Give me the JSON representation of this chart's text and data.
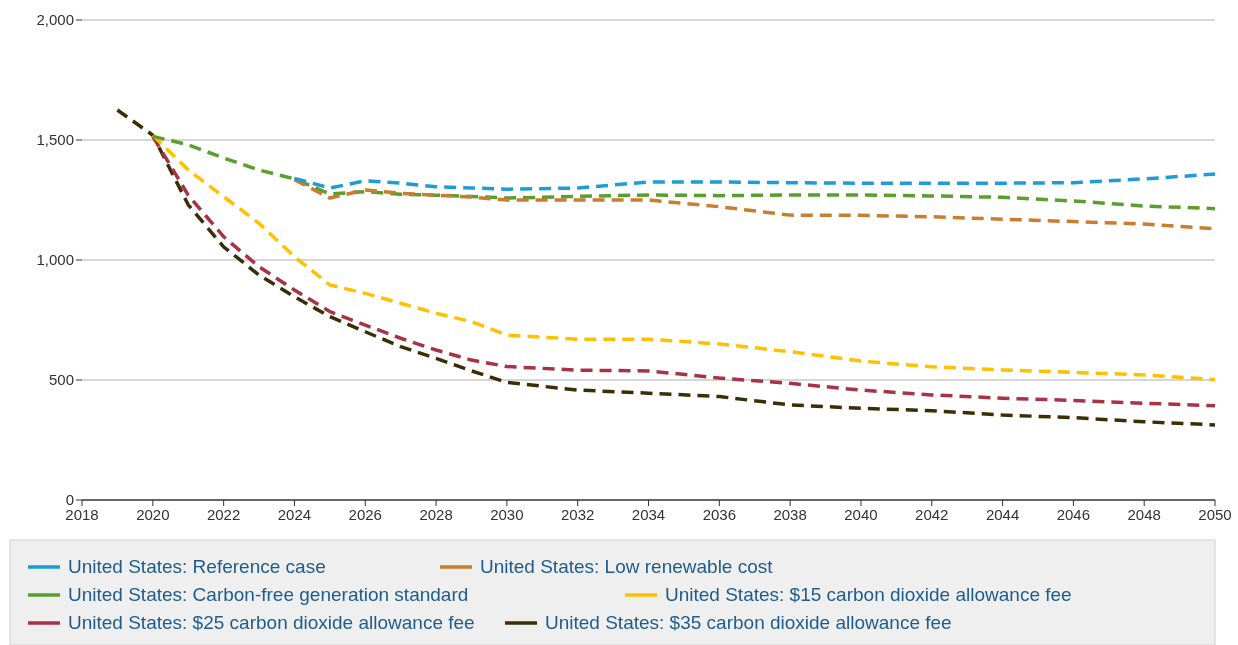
{
  "chart_data": {
    "type": "line",
    "x": [
      2019,
      2020,
      2021,
      2022,
      2023,
      2024,
      2025,
      2026,
      2027,
      2028,
      2029,
      2030,
      2032,
      2034,
      2036,
      2038,
      2040,
      2042,
      2044,
      2046,
      2048,
      2050
    ],
    "xlim": [
      2018,
      2050
    ],
    "xticks": [
      2018,
      2020,
      2022,
      2024,
      2026,
      2028,
      2030,
      2032,
      2034,
      2036,
      2038,
      2040,
      2042,
      2044,
      2046,
      2048,
      2050
    ],
    "ylim": [
      0,
      2000
    ],
    "yticks": [
      0,
      {
        "value": 500,
        "label": "500"
      },
      {
        "value": 1000,
        "label": "1,000"
      },
      {
        "value": 1500,
        "label": "1,500"
      },
      {
        "value": 2000,
        "label": "2,000"
      }
    ],
    "grid": "y",
    "legend": "bottom",
    "line_style": "dashed",
    "marker": "none",
    "series": [
      {
        "name": "United States: Reference case",
        "color": "#1f9bd7",
        "values": [
          null,
          null,
          null,
          null,
          null,
          1340,
          1300,
          1330,
          1320,
          1305,
          1300,
          1295,
          1300,
          1325,
          1325,
          1322,
          1320,
          1320,
          1320,
          1322,
          1338,
          1358
        ]
      },
      {
        "name": "United States: Low renewable cost",
        "color": "#c87d2f",
        "values": [
          null,
          null,
          null,
          null,
          null,
          1335,
          1258,
          1292,
          1278,
          1270,
          1262,
          1250,
          1250,
          1250,
          1222,
          1187,
          1186,
          1180,
          1170,
          1160,
          1150,
          1130
        ]
      },
      {
        "name": "United States: Carbon-free generation standard",
        "color": "#5a9e2e",
        "values": [
          null,
          1515,
          1480,
          1425,
          1375,
          1338,
          1275,
          1285,
          1274,
          1270,
          1265,
          1258,
          1265,
          1271,
          1268,
          1271,
          1271,
          1267,
          1261,
          1246,
          1225,
          1214
        ]
      },
      {
        "name": "United States: $15 carbon dioxide allowance fee",
        "color": "#ffc000",
        "values": [
          null,
          1520,
          1375,
          1264,
          1153,
          1014,
          896,
          861,
          820,
          778,
          743,
          687,
          670,
          670,
          650,
          618,
          579,
          555,
          542,
          532,
          521,
          502
        ]
      },
      {
        "name": "United States: $25 carbon dioxide allowance fee",
        "color": "#a83346",
        "values": [
          null,
          1515,
          1270,
          1097,
          972,
          875,
          785,
          729,
          674,
          625,
          583,
          556,
          541,
          538,
          508,
          486,
          458,
          438,
          424,
          415,
          403,
          393
        ]
      },
      {
        "name": "United States: $35 carbon dioxide allowance fee",
        "color": "#3b2e06",
        "values": [
          1625,
          1520,
          1230,
          1055,
          937,
          847,
          764,
          701,
          639,
          590,
          538,
          490,
          458,
          445,
          431,
          396,
          382,
          372,
          354,
          343,
          326,
          313
        ]
      }
    ]
  }
}
